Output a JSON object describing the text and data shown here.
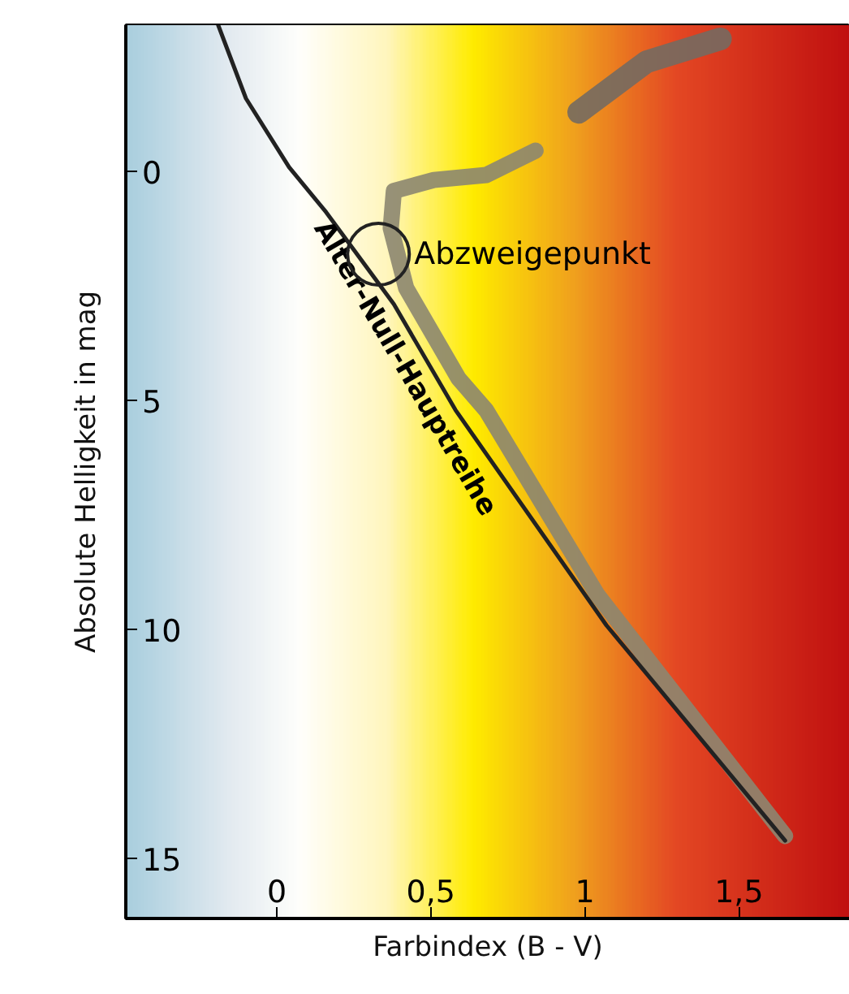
{
  "chart_data": {
    "type": "line",
    "xlabel": "Farbindex (B - V)",
    "ylabel": "Absolute Helligkeit in mag",
    "xlim": [
      -0.49,
      1.86
    ],
    "ylim": [
      16.3,
      -3.2
    ],
    "xticks": [
      0,
      {
        "value": 0.5,
        "label": "0,5"
      },
      1,
      {
        "value": 1.5,
        "label": "1,5"
      }
    ],
    "yticks": [
      0,
      5,
      10,
      15
    ],
    "series": [
      {
        "name": "Alter-Null-Hauptreihe",
        "color": "#222222",
        "x": [
          -0.19,
          -0.1,
          0.04,
          0.16,
          0.38,
          0.58,
          1.07,
          1.65
        ],
        "values": [
          -3.2,
          -1.6,
          -0.1,
          0.88,
          2.89,
          5.2,
          9.9,
          14.6
        ]
      },
      {
        "color": "#8c8670",
        "x": [
          0.84,
          0.68,
          0.51,
          0.38,
          0.37,
          0.42,
          0.59,
          0.68,
          1.04,
          1.65
        ],
        "values": [
          -0.46,
          0.07,
          0.18,
          0.42,
          1.23,
          2.54,
          4.51,
          5.21,
          9.23,
          14.5
        ]
      },
      {
        "color": "#746a60",
        "x": [
          0.98,
          1.2,
          1.44
        ],
        "values": [
          -1.3,
          -2.4,
          -2.9
        ]
      }
    ],
    "annotations": [
      {
        "text": "Abzweigepunkt",
        "x": 0.33,
        "y": 1.8
      }
    ]
  }
}
